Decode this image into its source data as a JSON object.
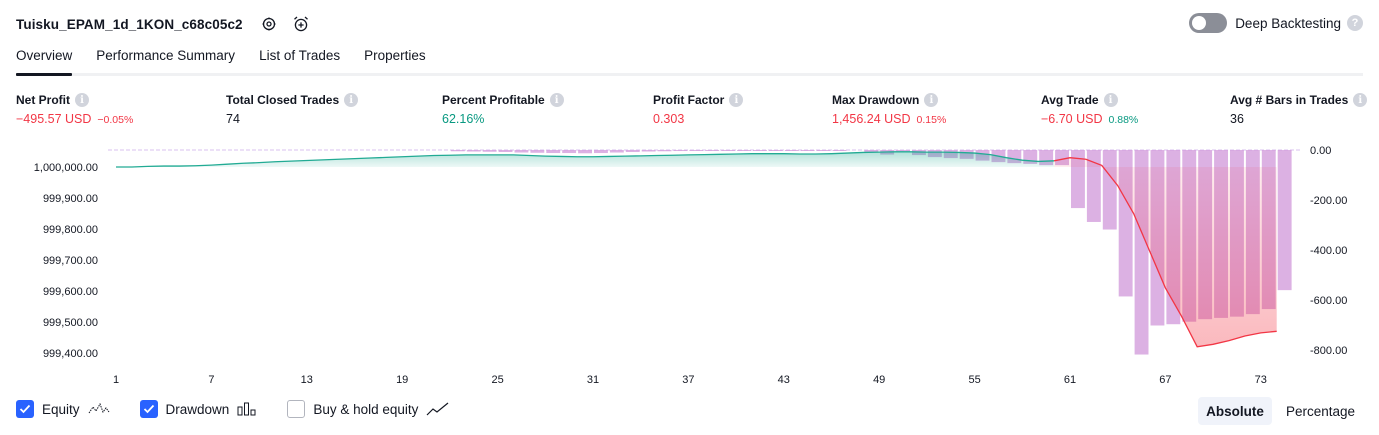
{
  "header": {
    "title": "Tuisku_EPAM_1d_1KON_c68c05c2",
    "settings_icon": "gear-icon",
    "alert_icon": "alarm-add-icon"
  },
  "deep_backtesting": {
    "label": "Deep Backtesting",
    "enabled": false,
    "help": "?"
  },
  "tabs": [
    {
      "label": "Overview",
      "active": true
    },
    {
      "label": "Performance Summary",
      "active": false
    },
    {
      "label": "List of Trades",
      "active": false
    },
    {
      "label": "Properties",
      "active": false
    }
  ],
  "metrics": [
    {
      "label": "Net Profit",
      "value": "−495.57 USD",
      "sub": "−0.05%",
      "tone": "neg"
    },
    {
      "label": "Total Closed Trades",
      "value": "74",
      "sub": "",
      "tone": ""
    },
    {
      "label": "Percent Profitable",
      "value": "62.16%",
      "sub": "",
      "tone": "pos"
    },
    {
      "label": "Profit Factor",
      "value": "0.303",
      "sub": "",
      "tone": "neg"
    },
    {
      "label": "Max Drawdown",
      "value": "1,456.24 USD",
      "sub": "0.15%",
      "tone": "neg"
    },
    {
      "label": "Avg Trade",
      "value": "−6.70 USD",
      "sub": "0.88%",
      "tone": "neg",
      "sub_tone": "pos"
    },
    {
      "label": "Avg # Bars in Trades",
      "value": "36",
      "sub": "",
      "tone": ""
    }
  ],
  "chart_data": {
    "type": "line",
    "x_ticks": [
      "1",
      "7",
      "13",
      "19",
      "25",
      "31",
      "37",
      "43",
      "49",
      "55",
      "61",
      "67",
      "73"
    ],
    "left_axis": {
      "ticks": [
        "1,000,000.00",
        "999,900.00",
        "999,800.00",
        "999,700.00",
        "999,600.00",
        "999,500.00",
        "999,400.00"
      ],
      "range": [
        999375,
        1000050
      ]
    },
    "right_axis": {
      "ticks": [
        "0.00",
        "-200.00",
        "-400.00",
        "-600.00",
        "-800.00"
      ],
      "range": [
        -820,
        0
      ]
    },
    "series": [
      {
        "name": "Equity",
        "color": "#22ab94",
        "loss_color": "#f23645",
        "values": [
          1000000,
          1000000,
          1000002,
          1000003,
          1000003,
          1000004,
          1000006,
          1000009,
          1000012,
          1000014,
          1000017,
          1000019,
          1000021,
          1000023,
          1000025,
          1000027,
          1000029,
          1000031,
          1000033,
          1000035,
          1000037,
          1000038,
          1000039,
          1000039,
          1000039,
          1000039,
          1000037,
          1000035,
          1000034,
          1000033,
          1000033,
          1000034,
          1000035,
          1000036,
          1000037,
          1000038,
          1000039,
          1000040,
          1000041,
          1000042,
          1000043,
          1000043,
          1000043,
          1000042,
          1000042,
          1000043,
          1000045,
          1000047,
          1000048,
          1000049,
          1000049,
          1000048,
          1000048,
          1000047,
          1000045,
          1000040,
          1000030,
          1000022,
          1000018,
          1000020,
          1000030,
          1000025,
          1000005,
          999940,
          999850,
          999730,
          999610,
          999520,
          999420,
          999428,
          999440,
          999455,
          999465,
          999470
        ]
      },
      {
        "name": "Drawdown",
        "color": "#ce93d8",
        "values": [
          0,
          0,
          0,
          0,
          0,
          0,
          0,
          0,
          0,
          0,
          0,
          0,
          0,
          0,
          0,
          0,
          0,
          0,
          0,
          0,
          0,
          -5,
          -6,
          -7,
          -8,
          -10,
          -11,
          -12,
          -12,
          -13,
          -12,
          -10,
          -8,
          -6,
          -5,
          -4,
          -3,
          -3,
          -2,
          -2,
          -2,
          -3,
          -3,
          -2,
          -2,
          -1,
          0,
          -8,
          -18,
          -5,
          -20,
          -28,
          -32,
          -35,
          -42,
          -48,
          -52,
          -55,
          -60,
          -60,
          -230,
          -285,
          -315,
          -580,
          -810,
          -695,
          -690,
          -680,
          -670,
          -665,
          -660,
          -650,
          -630,
          -555
        ]
      },
      {
        "name": "Buy & hold equity",
        "values": []
      }
    ]
  },
  "legend": {
    "items": [
      {
        "label": "Equity",
        "checked": true,
        "icon": "equity-line-icon"
      },
      {
        "label": "Drawdown",
        "checked": true,
        "icon": "drawdown-bars-icon"
      },
      {
        "label": "Buy & hold equity",
        "checked": false,
        "icon": "buy-hold-line-icon"
      }
    ]
  },
  "display_mode": {
    "options": [
      "Absolute",
      "Percentage"
    ],
    "selected": "Absolute"
  },
  "colors": {
    "accent": "#2962ff",
    "negative": "#f23645",
    "positive": "#089981"
  }
}
